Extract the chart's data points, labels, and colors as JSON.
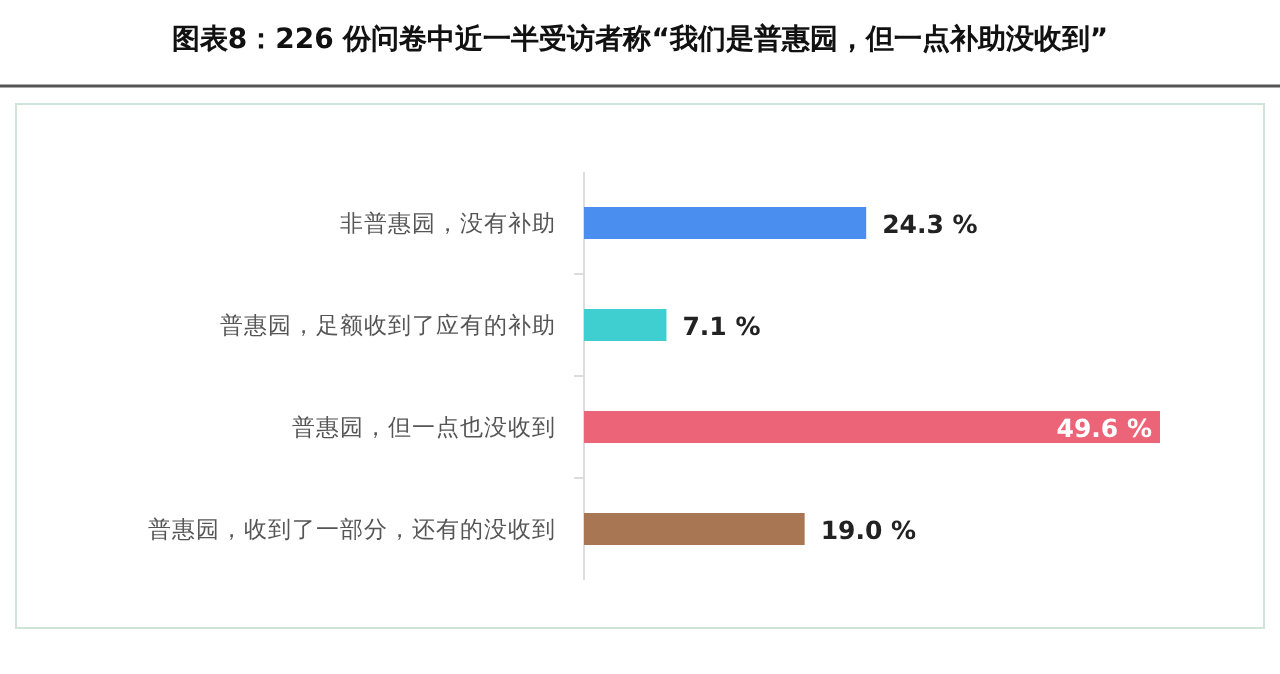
{
  "chart_data": {
    "type": "bar",
    "orientation": "horizontal",
    "title": "图表8：226 份问卷中近一半受访者称“我们是普惠园，但一点补助没收到”",
    "categories": [
      "非普惠园，没有补助",
      "普惠园，足额收到了应有的补助",
      "普惠园，但一点也没收到",
      "普惠园，收到了一部分，还有的没收到"
    ],
    "values": [
      24.3,
      7.1,
      49.6,
      19.0
    ],
    "colors": [
      "#4a8ef0",
      "#3fcfd0",
      "#ec6478",
      "#a87652"
    ],
    "value_labels": [
      "24.3 %",
      "7.1 %",
      "49.6 %",
      "19.0 %"
    ]
  }
}
